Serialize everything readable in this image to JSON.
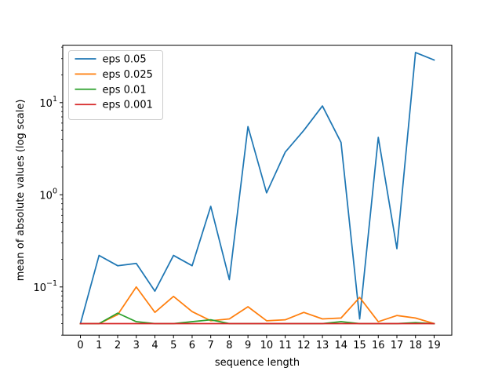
{
  "chart_data": {
    "type": "line",
    "title": "",
    "xlabel": "sequence length",
    "ylabel": "mean of absolute values (log scale)",
    "yscale": "log",
    "ylim": [
      0.03,
      42
    ],
    "xlim": [
      -0.95,
      19.95
    ],
    "x": [
      0,
      1,
      2,
      3,
      4,
      5,
      6,
      7,
      8,
      9,
      10,
      11,
      12,
      13,
      14,
      15,
      16,
      17,
      18,
      19
    ],
    "x_tick_labels": [
      "0",
      "1",
      "2",
      "3",
      "4",
      "5",
      "6",
      "7",
      "8",
      "9",
      "10",
      "11",
      "12",
      "13",
      "14",
      "15",
      "16",
      "17",
      "18",
      "19"
    ],
    "y_ticks": [
      {
        "value": 0.1,
        "base": "10",
        "exp": "−1"
      },
      {
        "value": 1,
        "base": "10",
        "exp": "0"
      },
      {
        "value": 10,
        "base": "10",
        "exp": "1"
      }
    ],
    "grid": false,
    "legend_position": "upper-left",
    "series": [
      {
        "name": "eps 0.05",
        "color": "#1f77b4",
        "values": [
          0.04,
          0.22,
          0.17,
          0.18,
          0.09,
          0.22,
          0.17,
          0.75,
          0.12,
          5.5,
          1.05,
          2.9,
          5.0,
          9.2,
          3.7,
          0.045,
          4.2,
          0.26,
          35,
          29
        ]
      },
      {
        "name": "eps 0.025",
        "color": "#ff7f0e",
        "values": [
          0.04,
          0.04,
          0.05,
          0.1,
          0.053,
          0.079,
          0.054,
          0.043,
          0.045,
          0.061,
          0.043,
          0.044,
          0.053,
          0.045,
          0.046,
          0.077,
          0.042,
          0.049,
          0.046,
          0.04
        ]
      },
      {
        "name": "eps 0.01",
        "color": "#2ca02c",
        "values": [
          0.04,
          0.04,
          0.052,
          0.042,
          0.04,
          0.04,
          0.042,
          0.044,
          0.04,
          0.04,
          0.04,
          0.04,
          0.04,
          0.04,
          0.042,
          0.04,
          0.04,
          0.04,
          0.041,
          0.04
        ]
      },
      {
        "name": "eps 0.001",
        "color": "#d62728",
        "values": [
          0.04,
          0.04,
          0.04,
          0.04,
          0.04,
          0.04,
          0.04,
          0.04,
          0.04,
          0.04,
          0.04,
          0.04,
          0.04,
          0.04,
          0.04,
          0.04,
          0.04,
          0.04,
          0.04,
          0.04
        ]
      }
    ]
  }
}
